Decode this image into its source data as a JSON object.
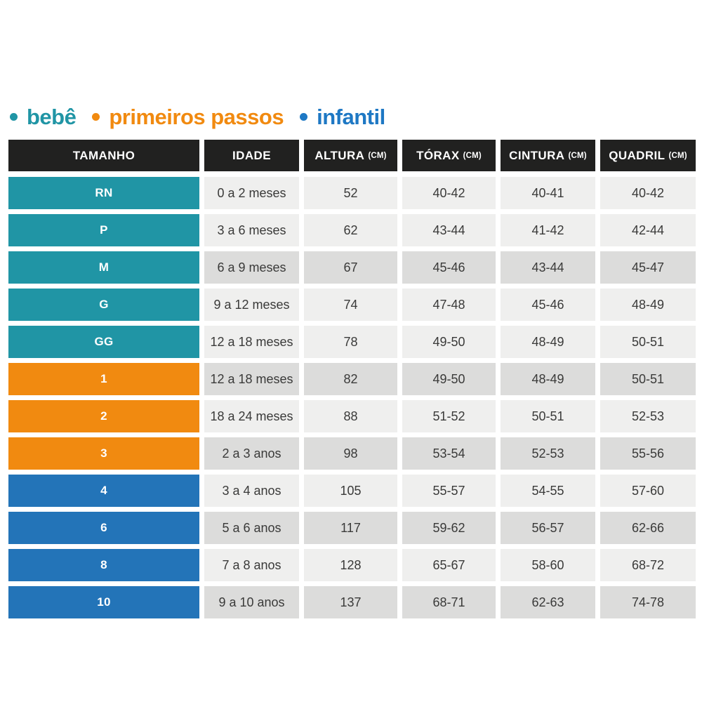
{
  "legend": {
    "items": [
      {
        "label": "bebê",
        "group": "bebe"
      },
      {
        "label": "primeiros passos",
        "group": "primeiros"
      },
      {
        "label": "infantil",
        "group": "infantil"
      }
    ]
  },
  "chart_data": {
    "type": "table",
    "legend_entries": [
      "bebê",
      "primeiros passos",
      "infantil"
    ],
    "columns": [
      {
        "label": "TAMANHO",
        "unit": ""
      },
      {
        "label": "IDADE",
        "unit": ""
      },
      {
        "label": "ALTURA",
        "unit": "(CM)"
      },
      {
        "label": "TÓRAX",
        "unit": "(CM)"
      },
      {
        "label": "CINTURA",
        "unit": "(CM)"
      },
      {
        "label": "QUADRIL",
        "unit": "(CM)"
      }
    ],
    "rows": [
      {
        "tamanho": "RN",
        "group": "bebe",
        "shaded": false,
        "idade": "0 a 2 meses",
        "altura": "52",
        "torax": "40-42",
        "cintura": "40-41",
        "quadril": "40-42"
      },
      {
        "tamanho": "P",
        "group": "bebe",
        "shaded": false,
        "idade": "3 a 6 meses",
        "altura": "62",
        "torax": "43-44",
        "cintura": "41-42",
        "quadril": "42-44"
      },
      {
        "tamanho": "M",
        "group": "bebe",
        "shaded": true,
        "idade": "6 a 9 meses",
        "altura": "67",
        "torax": "45-46",
        "cintura": "43-44",
        "quadril": "45-47"
      },
      {
        "tamanho": "G",
        "group": "bebe",
        "shaded": false,
        "idade": "9 a 12 meses",
        "altura": "74",
        "torax": "47-48",
        "cintura": "45-46",
        "quadril": "48-49"
      },
      {
        "tamanho": "GG",
        "group": "bebe",
        "shaded": false,
        "idade": "12 a 18 meses",
        "altura": "78",
        "torax": "49-50",
        "cintura": "48-49",
        "quadril": "50-51"
      },
      {
        "tamanho": "1",
        "group": "primeiros",
        "shaded": true,
        "idade": "12 a 18 meses",
        "altura": "82",
        "torax": "49-50",
        "cintura": "48-49",
        "quadril": "50-51"
      },
      {
        "tamanho": "2",
        "group": "primeiros",
        "shaded": false,
        "idade": "18 a 24 meses",
        "altura": "88",
        "torax": "51-52",
        "cintura": "50-51",
        "quadril": "52-53"
      },
      {
        "tamanho": "3",
        "group": "primeiros",
        "shaded": true,
        "idade": "2 a 3 anos",
        "altura": "98",
        "torax": "53-54",
        "cintura": "52-53",
        "quadril": "55-56"
      },
      {
        "tamanho": "4",
        "group": "infantil",
        "shaded": false,
        "idade": "3 a 4 anos",
        "altura": "105",
        "torax": "55-57",
        "cintura": "54-55",
        "quadril": "57-60"
      },
      {
        "tamanho": "6",
        "group": "infantil",
        "shaded": true,
        "idade": "5 a 6 anos",
        "altura": "117",
        "torax": "59-62",
        "cintura": "56-57",
        "quadril": "62-66"
      },
      {
        "tamanho": "8",
        "group": "infantil",
        "shaded": false,
        "idade": "7 a 8 anos",
        "altura": "128",
        "torax": "65-67",
        "cintura": "58-60",
        "quadril": "68-72"
      },
      {
        "tamanho": "10",
        "group": "infantil",
        "shaded": true,
        "idade": "9 a 10 anos",
        "altura": "137",
        "torax": "68-71",
        "cintura": "62-63",
        "quadril": "74-78"
      }
    ]
  },
  "colors": {
    "teal": "#2095a5",
    "orange": "#f18a10",
    "blue": "#2374b8",
    "header-bg": "#212120",
    "row-light": "#efefee",
    "row-dark": "#dcdcdb",
    "cell-text": "#3a3a39"
  }
}
